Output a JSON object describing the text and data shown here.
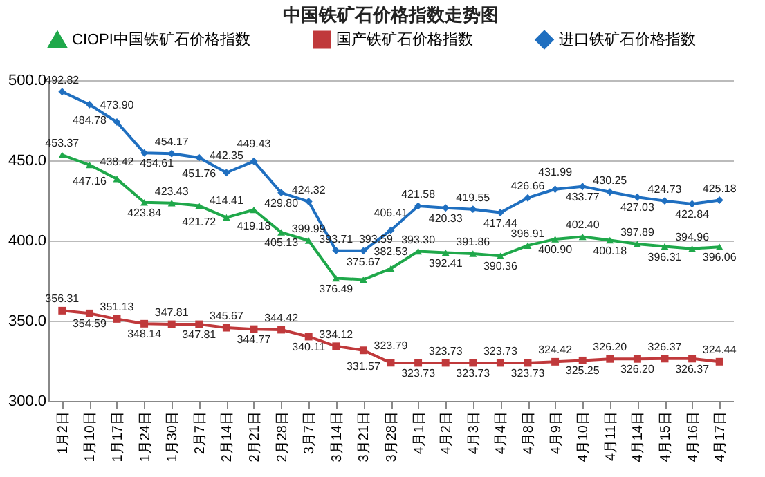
{
  "chart_data": {
    "type": "line",
    "title": "中国铁矿石价格指数走势图",
    "categories": [
      "1月2日",
      "1月10日",
      "1月17日",
      "1月24日",
      "1月30日",
      "2月7日",
      "2月14日",
      "2月21日",
      "2月28日",
      "3月7日",
      "3月14日",
      "3月21日",
      "3月28日",
      "4月1日",
      "4月2日",
      "4月3日",
      "4月4日",
      "4月8日",
      "4月9日",
      "4月10日",
      "4月11日",
      "4月14日",
      "4月15日",
      "4月16日",
      "4月17日"
    ],
    "series": [
      {
        "name": "CIOPI中国铁矿石价格指数",
        "color": "#1fa84a",
        "marker": "triangle",
        "values": [
          453.37,
          447.16,
          438.42,
          423.84,
          423.43,
          421.72,
          414.41,
          419.18,
          405.13,
          399.99,
          376.49,
          375.67,
          382.53,
          393.3,
          392.41,
          391.86,
          390.36,
          396.91,
          400.9,
          402.4,
          400.18,
          397.89,
          396.31,
          394.96,
          396.06
        ],
        "value_labels": [
          "453.37",
          "447.16",
          "438.42",
          "423.84",
          "423.43",
          "421.72",
          "414.41",
          "419.18",
          "405.13",
          "399.99",
          "376.49",
          "375.67",
          "382.53",
          "393.30",
          "392.41",
          "391.86",
          "390.36",
          "396.91",
          "400.90",
          "402.40",
          "400.18",
          "397.89",
          "396.31",
          "394.96",
          "396.06"
        ]
      },
      {
        "name": "国产铁矿石价格指数",
        "color": "#c0393b",
        "marker": "square",
        "values": [
          356.31,
          354.59,
          351.13,
          348.14,
          347.81,
          347.81,
          345.67,
          344.77,
          344.42,
          340.11,
          334.12,
          331.57,
          323.79,
          323.73,
          323.73,
          323.73,
          323.73,
          323.73,
          324.42,
          325.25,
          326.2,
          326.2,
          326.37,
          326.37,
          324.44
        ],
        "value_labels": [
          "356.31",
          "354.59",
          "351.13",
          "348.14",
          "347.81",
          "347.81",
          "345.67",
          "344.77",
          "344.42",
          "340.11",
          "334.12",
          "331.57",
          "323.79",
          "323.73",
          "323.73",
          "323.73",
          "323.73",
          "323.73",
          "324.42",
          "325.25",
          "326.20",
          "326.20",
          "326.37",
          "326.37",
          "324.44"
        ]
      },
      {
        "name": "进口铁矿石价格指数",
        "color": "#1f6fc0",
        "marker": "diamond",
        "values": [
          492.82,
          484.78,
          473.9,
          454.61,
          454.17,
          451.76,
          442.35,
          449.43,
          429.8,
          424.32,
          393.71,
          393.59,
          406.41,
          421.58,
          420.33,
          419.55,
          417.44,
          426.66,
          431.99,
          433.77,
          430.25,
          427.03,
          424.73,
          422.84,
          425.18
        ],
        "value_labels": [
          "492.82",
          "484.78",
          "473.90",
          "454.61",
          "454.17",
          "451.76",
          "442.35",
          "449.43",
          "429.80",
          "424.32",
          "393.71",
          "393.59",
          "406.41",
          "421.58",
          "420.33",
          "419.55",
          "417.44",
          "426.66",
          "431.99",
          "433.77",
          "430.25",
          "427.03",
          "424.73",
          "422.84",
          "425.18"
        ]
      }
    ],
    "ylim": [
      300,
      500
    ],
    "yticks": [
      {
        "value": 300,
        "label": "300.0"
      },
      {
        "value": 350,
        "label": "350.0"
      },
      {
        "value": 400,
        "label": "400.0"
      },
      {
        "value": 450,
        "label": "450.0"
      },
      {
        "value": 500,
        "label": "500.0"
      }
    ],
    "grid": "y",
    "legend": "top"
  }
}
